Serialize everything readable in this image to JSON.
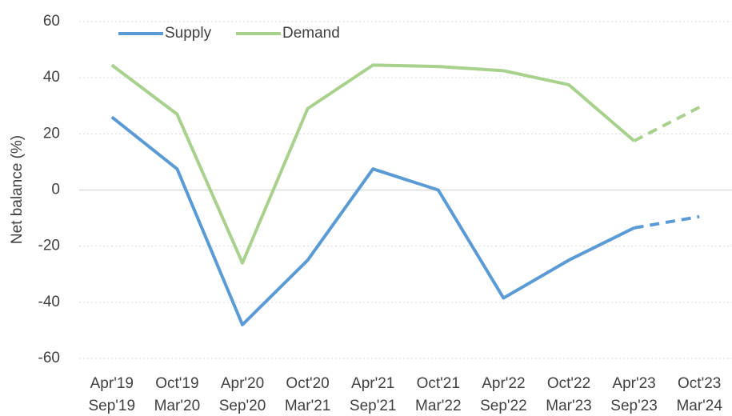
{
  "chart_data": {
    "type": "line",
    "y_label": "Net balance (%)",
    "categories": [
      [
        "Apr'19",
        "Sep'19"
      ],
      [
        "Oct'19",
        "Mar'20"
      ],
      [
        "Apr'20",
        "Sep'20"
      ],
      [
        "Oct'20",
        "Mar'21"
      ],
      [
        "Apr'21",
        "Sep'21"
      ],
      [
        "Oct'21",
        "Mar'22"
      ],
      [
        "Apr'22",
        "Sep'22"
      ],
      [
        "Oct'22",
        "Mar'23"
      ],
      [
        "Apr'23",
        "Sep'23"
      ],
      [
        "Oct'23",
        "Mar'24"
      ]
    ],
    "series": [
      {
        "name": "Supply",
        "color": "#5b9bd5",
        "values": [
          26,
          7.5,
          -48,
          -25,
          7.5,
          0,
          -38.5,
          -25,
          -13.5,
          -9.5
        ]
      },
      {
        "name": "Demand",
        "color": "#a9d18e",
        "values": [
          44.5,
          27,
          -26,
          29,
          44.5,
          44,
          42.5,
          37.5,
          17.5,
          29.5
        ]
      }
    ],
    "dashed_from": 8,
    "ylim": [
      -60,
      60
    ],
    "yticks": [
      -60,
      -40,
      -20,
      0,
      20,
      40,
      60
    ],
    "grid": true,
    "legend": "top-left"
  }
}
